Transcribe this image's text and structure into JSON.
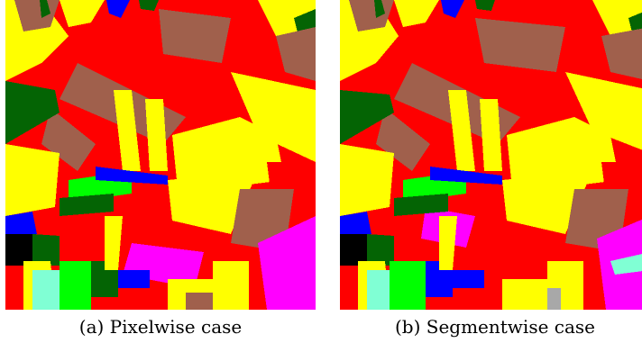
{
  "figure": {
    "panels": [
      {
        "caption": "(a) Pixelwise case"
      },
      {
        "caption": "(b) Segmentwise case"
      }
    ]
  },
  "palette": {
    "red": "#fe0000",
    "yellow": "#ffff00",
    "brown": "#a0604c",
    "dark_green": "#046404",
    "blue": "#0000ff",
    "light_green": "#00ff00",
    "magenta": "#ff00ff",
    "cyan": "#80ffd4",
    "black": "#000000",
    "gray": "#a8a8a8"
  }
}
